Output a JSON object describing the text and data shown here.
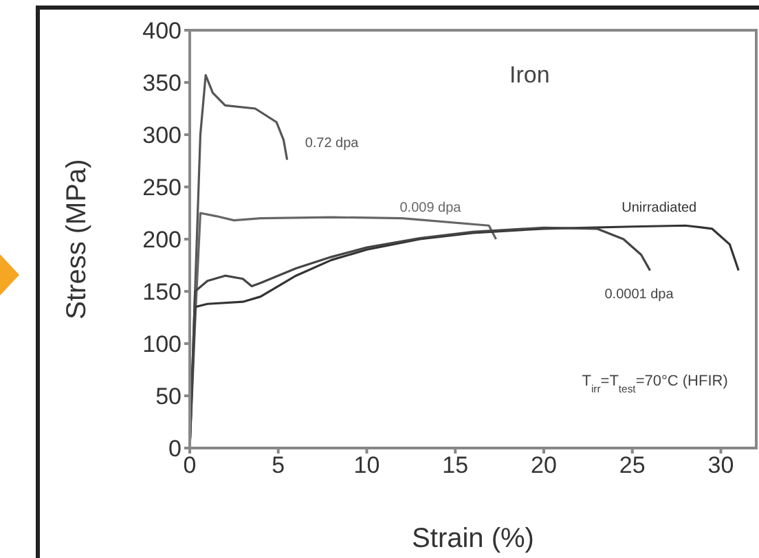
{
  "chart_data": {
    "type": "line",
    "title": "Iron",
    "xlabel": "Strain (%)",
    "ylabel": "Stress (MPa)",
    "xlim": [
      0,
      32
    ],
    "ylim": [
      0,
      400
    ],
    "xticks": [
      0,
      5,
      10,
      15,
      20,
      25,
      30
    ],
    "yticks": [
      0,
      50,
      100,
      150,
      200,
      250,
      300,
      350,
      400
    ],
    "grid": false,
    "legend": false,
    "marker": "none",
    "line_style": "solid",
    "series": [
      {
        "name": "0.72 dpa",
        "color": "#555555",
        "x": [
          0,
          0.3,
          0.6,
          0.9,
          1.3,
          2.0,
          3.7,
          4.9,
          5.3,
          5.5
        ],
        "values": [
          0,
          150,
          300,
          357,
          340,
          328,
          325,
          312,
          295,
          276
        ]
      },
      {
        "name": "0.009 dpa",
        "color": "#666666",
        "x": [
          0,
          0.3,
          0.6,
          1.5,
          2.5,
          4,
          8,
          12,
          16.9,
          17.3
        ],
        "values": [
          0,
          120,
          225,
          222,
          218,
          220,
          221,
          220,
          213,
          200
        ]
      },
      {
        "name": "Unirradiated",
        "color": "#333333",
        "x": [
          0,
          0.3,
          1,
          3,
          4,
          6,
          8,
          10,
          13,
          16,
          20,
          25,
          28,
          29.5,
          30.5,
          31
        ],
        "values": [
          0,
          135,
          138,
          140,
          145,
          165,
          180,
          190,
          200,
          206,
          210,
          212,
          213,
          210,
          195,
          170
        ]
      },
      {
        "name": "0.0001 dpa",
        "color": "#444444",
        "x": [
          0,
          0.3,
          1,
          2,
          3,
          3.5,
          4,
          6,
          8,
          10,
          13,
          16,
          20,
          23,
          24.5,
          25.5,
          26
        ],
        "values": [
          0,
          150,
          160,
          165,
          162,
          155,
          158,
          172,
          183,
          192,
          201,
          207,
          211,
          210,
          200,
          185,
          170
        ]
      }
    ],
    "annotations": [
      "T$_{irr}$=T$_{test}$=70°C (HFIR)"
    ]
  }
}
